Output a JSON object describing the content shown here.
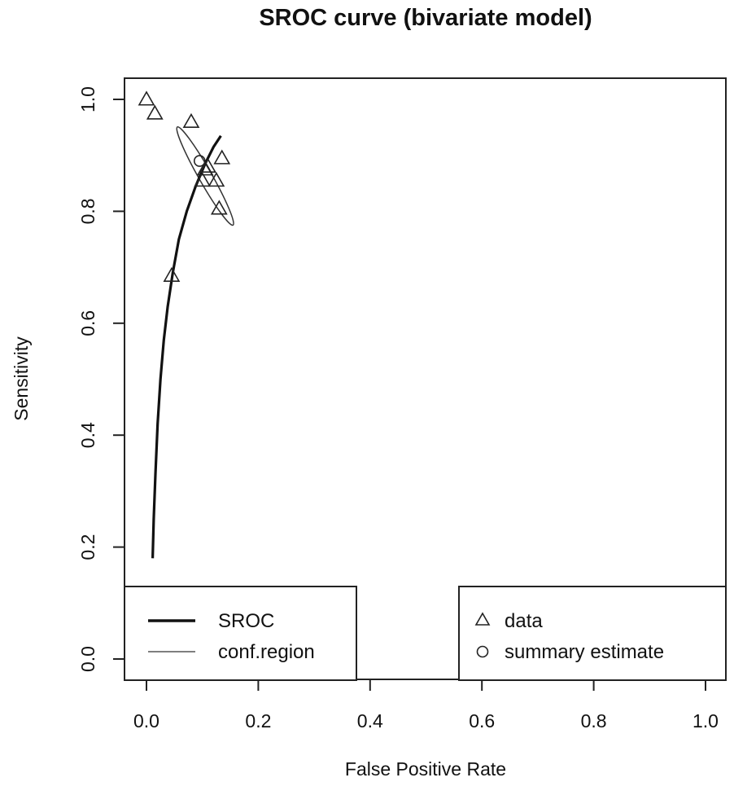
{
  "chart_data": {
    "type": "scatter",
    "title": "SROC curve (bivariate model)",
    "xlabel": "False Positive Rate",
    "ylabel": "Sensitivity",
    "xlim": [
      0,
      1
    ],
    "ylim": [
      0,
      1
    ],
    "x_ticks": [
      "0.0",
      "0.2",
      "0.4",
      "0.6",
      "0.8",
      "1.0"
    ],
    "y_ticks": [
      "0.0",
      "0.2",
      "0.4",
      "0.6",
      "0.8",
      "1.0"
    ],
    "grid": false,
    "data_points": [
      {
        "x": 0.0,
        "y": 1.0
      },
      {
        "x": 0.015,
        "y": 0.975
      },
      {
        "x": 0.08,
        "y": 0.96
      },
      {
        "x": 0.045,
        "y": 0.685
      },
      {
        "x": 0.11,
        "y": 0.88
      },
      {
        "x": 0.105,
        "y": 0.875
      },
      {
        "x": 0.1,
        "y": 0.855
      },
      {
        "x": 0.125,
        "y": 0.855
      },
      {
        "x": 0.135,
        "y": 0.895
      },
      {
        "x": 0.13,
        "y": 0.805
      }
    ],
    "summary_estimate": {
      "x": 0.095,
      "y": 0.89
    },
    "sroc_curve": [
      [
        0.011,
        0.18
      ],
      [
        0.013,
        0.25
      ],
      [
        0.016,
        0.33
      ],
      [
        0.02,
        0.42
      ],
      [
        0.025,
        0.5
      ],
      [
        0.031,
        0.57
      ],
      [
        0.038,
        0.63
      ],
      [
        0.047,
        0.69
      ],
      [
        0.058,
        0.75
      ],
      [
        0.072,
        0.8
      ],
      [
        0.088,
        0.845
      ],
      [
        0.105,
        0.885
      ],
      [
        0.12,
        0.915
      ],
      [
        0.133,
        0.935
      ]
    ],
    "confidence_region": {
      "cx": 0.105,
      "cy": 0.863,
      "angle_deg": -60.4,
      "rx": 0.1008,
      "ry": 0.0117
    },
    "legends": [
      {
        "placement": "bottom-left",
        "entries": [
          {
            "label": "SROC",
            "symbol": "thick-line"
          },
          {
            "label": "conf.region",
            "symbol": "thin-line"
          }
        ]
      },
      {
        "placement": "bottom-right",
        "entries": [
          {
            "label": "data",
            "symbol": "triangle"
          },
          {
            "label": "summary estimate",
            "symbol": "circle"
          }
        ]
      }
    ]
  }
}
